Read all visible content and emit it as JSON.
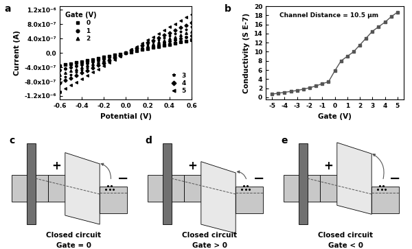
{
  "chart_data": [
    {
      "panel": "a",
      "type": "scatter",
      "x_label": "Potential (V)",
      "y_label": "Current (A)",
      "legend_title": "Gate (V)",
      "x": [
        -0.6,
        -0.55,
        -0.5,
        -0.45,
        -0.4,
        -0.35,
        -0.3,
        -0.25,
        -0.2,
        -0.15,
        -0.1,
        -0.05,
        0.0,
        0.05,
        0.1,
        0.15,
        0.2,
        0.25,
        0.3,
        0.35,
        0.4,
        0.45,
        0.5,
        0.55,
        0.6
      ],
      "xlim": [
        -0.6,
        0.6
      ],
      "xticks": [
        -0.6,
        -0.4,
        -0.2,
        0.0,
        0.2,
        0.4,
        0.6
      ],
      "ylim": [
        -1.3e-06,
        1.3e-06
      ],
      "yticks": [
        {
          "value": -1.2e-06,
          "label": "-1.2x10⁻⁶"
        },
        {
          "value": -8e-07,
          "label": "-8.0x10⁻⁷"
        },
        {
          "value": -4e-07,
          "label": "-4.0x10⁻⁷"
        },
        0.0,
        {
          "value": 4e-07,
          "label": "4.0x10⁻⁷"
        },
        {
          "value": 8e-07,
          "label": "8.0x10⁻⁷"
        },
        {
          "value": 1.2e-06,
          "label": "1.2x10⁻⁶"
        }
      ],
      "grid": false,
      "series": [
        {
          "name": "0",
          "color": "#000000",
          "marker": "square",
          "line_style": "none",
          "legend": "upper left",
          "values": [
            -3.6e-07,
            -3.3e-07,
            -3e-07,
            -2.7e-07,
            -2.4e-07,
            -2.1e-07,
            -1.8e-07,
            -1.5e-07,
            -1.2e-07,
            -9e-08,
            -6e-08,
            -3e-08,
            0,
            3e-08,
            6e-08,
            9e-08,
            1.2e-07,
            1.5e-07,
            1.8e-07,
            2.1e-07,
            2.4e-07,
            2.7e-07,
            3e-07,
            3.3e-07,
            3.6e-07
          ]
        },
        {
          "name": "1",
          "color": "#000000",
          "marker": "circle",
          "line_style": "none",
          "legend": "upper left",
          "values": [
            -4.8e-07,
            -4.4e-07,
            -4e-07,
            -3.6e-07,
            -3.2e-07,
            -2.8e-07,
            -2.4e-07,
            -2e-07,
            -1.6e-07,
            -1.2e-07,
            -8e-08,
            -4e-08,
            0,
            4e-08,
            8e-08,
            1.2e-07,
            1.6e-07,
            2e-07,
            2.4e-07,
            2.8e-07,
            3.2e-07,
            3.6e-07,
            4e-07,
            4.4e-07,
            4.8e-07
          ]
        },
        {
          "name": "2",
          "color": "#000000",
          "marker": "triangle",
          "line_style": "none",
          "legend": "upper left",
          "values": [
            -6e-07,
            -5.5e-07,
            -5e-07,
            -4.5e-07,
            -4e-07,
            -3.5e-07,
            -3e-07,
            -2.5e-07,
            -2e-07,
            -1.5e-07,
            -1e-07,
            -5e-08,
            0,
            5e-08,
            1e-07,
            1.5e-07,
            2e-07,
            2.5e-07,
            3e-07,
            3.5e-07,
            4e-07,
            4.5e-07,
            5e-07,
            5.5e-07,
            6e-07
          ]
        },
        {
          "name": "3",
          "color": "#000000",
          "marker": "star",
          "line_style": "none",
          "legend": "lower right",
          "values": [
            -7.2e-07,
            -6.6e-07,
            -6e-07,
            -5.4e-07,
            -4.8e-07,
            -4.2e-07,
            -3.6e-07,
            -3e-07,
            -2.4e-07,
            -1.8e-07,
            -1.2e-07,
            -6e-08,
            0,
            6e-08,
            1.2e-07,
            1.8e-07,
            2.4e-07,
            3e-07,
            3.6e-07,
            4.2e-07,
            4.8e-07,
            5.4e-07,
            6e-07,
            6.6e-07,
            7.2e-07
          ]
        },
        {
          "name": "4",
          "color": "#000000",
          "marker": "diamond",
          "line_style": "none",
          "legend": "lower right",
          "values": [
            -8.4e-07,
            -7.7e-07,
            -7e-07,
            -6.3e-07,
            -5.6e-07,
            -4.9e-07,
            -4.2e-07,
            -3.5e-07,
            -2.8e-07,
            -2.1e-07,
            -1.4e-07,
            -7e-08,
            0,
            7e-08,
            1.4e-07,
            2.1e-07,
            2.8e-07,
            3.5e-07,
            4.2e-07,
            4.9e-07,
            5.6e-07,
            6.3e-07,
            7e-07,
            7.7e-07,
            8.4e-07
          ]
        },
        {
          "name": "5",
          "color": "#000000",
          "marker": "triangle_left",
          "line_style": "none",
          "legend": "lower right",
          "values": [
            -1.08e-06,
            -9.9e-07,
            -9e-07,
            -8.1e-07,
            -7.2e-07,
            -6.3e-07,
            -5.4e-07,
            -4.5e-07,
            -3.6e-07,
            -2.7e-07,
            -1.8e-07,
            -9e-08,
            0,
            9e-08,
            1.8e-07,
            2.7e-07,
            3.6e-07,
            4.5e-07,
            5.4e-07,
            6.3e-07,
            7.2e-07,
            8.1e-07,
            9e-07,
            9.9e-07,
            1.08e-06
          ]
        }
      ]
    },
    {
      "panel": "b",
      "type": "line",
      "x_label": "Gate (V)",
      "y_label": "Conductivity (S E-7)",
      "annotation": "Channel Distance = 10.5 μm",
      "x": [
        -5,
        -4.5,
        -4,
        -3.5,
        -3,
        -2.5,
        -2,
        -1.5,
        -1,
        -0.5,
        0,
        0.5,
        1,
        1.5,
        2,
        2.5,
        3,
        3.5,
        4,
        4.5,
        5
      ],
      "xlim": [
        -5.5,
        5.5
      ],
      "xticks": [
        -5,
        -4,
        -3,
        -2,
        -1,
        0,
        1,
        2,
        3,
        4,
        5
      ],
      "ylim": [
        -0.5,
        20
      ],
      "yticks": [
        0,
        2,
        4,
        6,
        8,
        10,
        12,
        14,
        16,
        18,
        20
      ],
      "grid": false,
      "color": "#555555",
      "marker": "square",
      "line_style": "solid",
      "values": [
        0.7,
        0.9,
        1.1,
        1.3,
        1.5,
        1.8,
        2.1,
        2.5,
        3.0,
        3.4,
        5.8,
        8.0,
        9.0,
        10.0,
        11.5,
        13.0,
        14.5,
        15.5,
        16.5,
        17.7,
        18.7
      ]
    }
  ],
  "diagrams": [
    {
      "panel": "c",
      "plus": "+",
      "minus": "−",
      "title": "Closed circuit",
      "subtitle": "Gate = 0"
    },
    {
      "panel": "d",
      "plus": "+",
      "minus": "−",
      "title": "Closed circuit",
      "subtitle": "Gate > 0"
    },
    {
      "panel": "e",
      "plus": "+",
      "minus": "−",
      "title": "Closed circuit",
      "subtitle": "Gate < 0"
    }
  ]
}
